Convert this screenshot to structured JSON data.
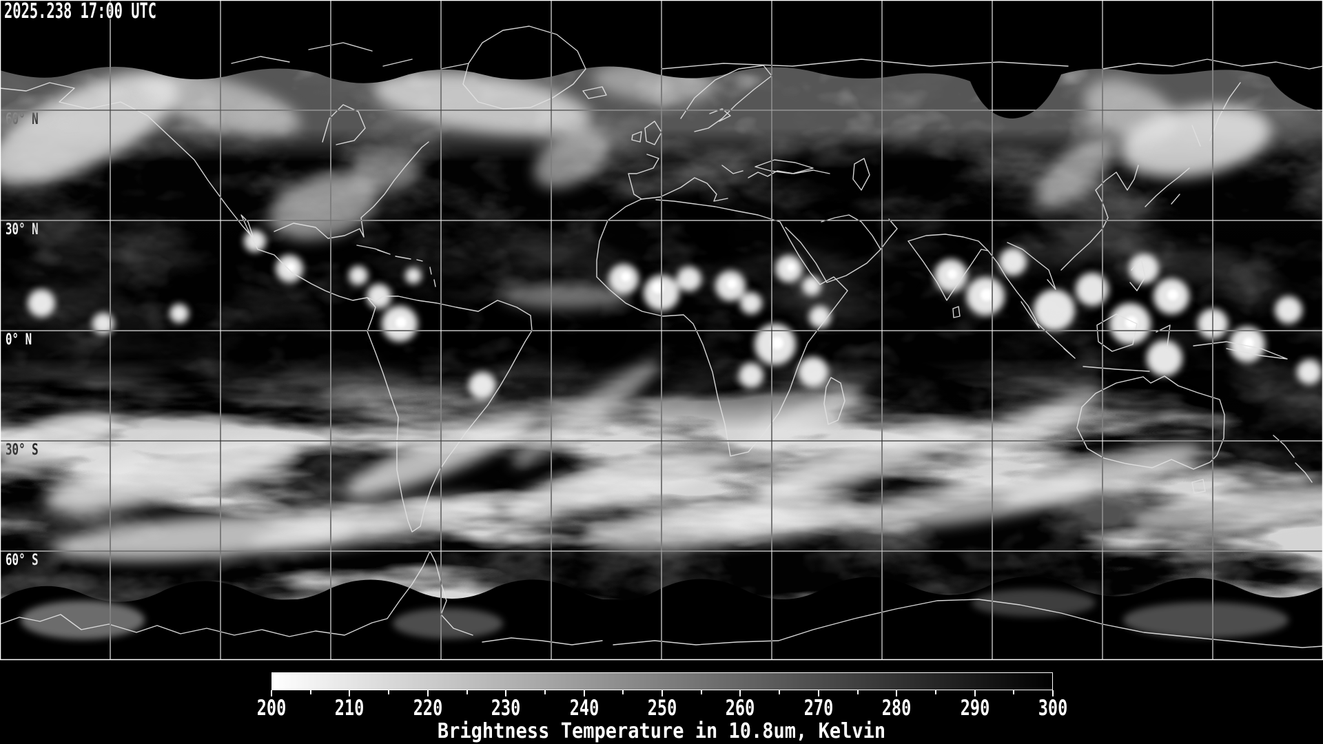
{
  "header": {
    "timestamp": "2025.238 17:00 UTC"
  },
  "map": {
    "latitude_labels": [
      {
        "text": "60° N"
      },
      {
        "text": "30° N"
      },
      {
        "text": "0° N"
      },
      {
        "text": "30° S"
      },
      {
        "text": "60° S"
      }
    ],
    "grid": {
      "latitude_spacing_deg": 30,
      "longitude_spacing_deg": 30
    }
  },
  "colorbar": {
    "ticks": [
      "200",
      "210",
      "220",
      "230",
      "240",
      "250",
      "260",
      "270",
      "280",
      "290",
      "300"
    ],
    "min": 200,
    "max": 300,
    "units": "Kelvin",
    "caption": "Brightness Temperature in 10.8um, Kelvin",
    "gradient_start": "#ffffff",
    "gradient_end": "#000000"
  }
}
